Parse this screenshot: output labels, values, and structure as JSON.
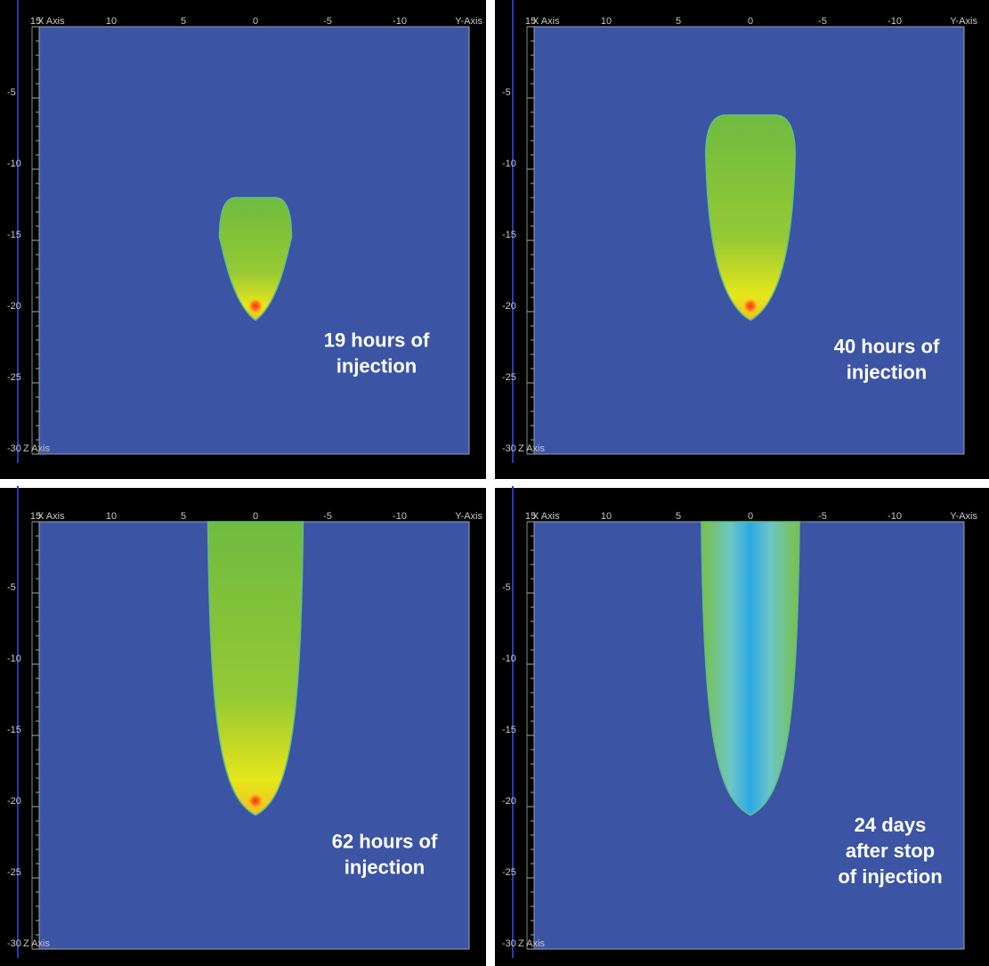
{
  "axes": {
    "x_ticks": [
      "15",
      "10",
      "5",
      "0",
      "-5",
      "-10"
    ],
    "x_name": "X Axis",
    "y_name": "Y-Axis",
    "z_ticks": [
      "-5",
      "-10",
      "-15",
      "-20",
      "-25",
      "-30"
    ],
    "z_name": "Z Axis"
  },
  "panels": [
    {
      "caption": [
        "19 hours of",
        "injection"
      ]
    },
    {
      "caption": [
        "40 hours of",
        "injection"
      ]
    },
    {
      "caption": [
        "62 hours of",
        "injection"
      ]
    },
    {
      "caption": [
        "24 days",
        "after stop",
        "of injection"
      ]
    }
  ]
}
